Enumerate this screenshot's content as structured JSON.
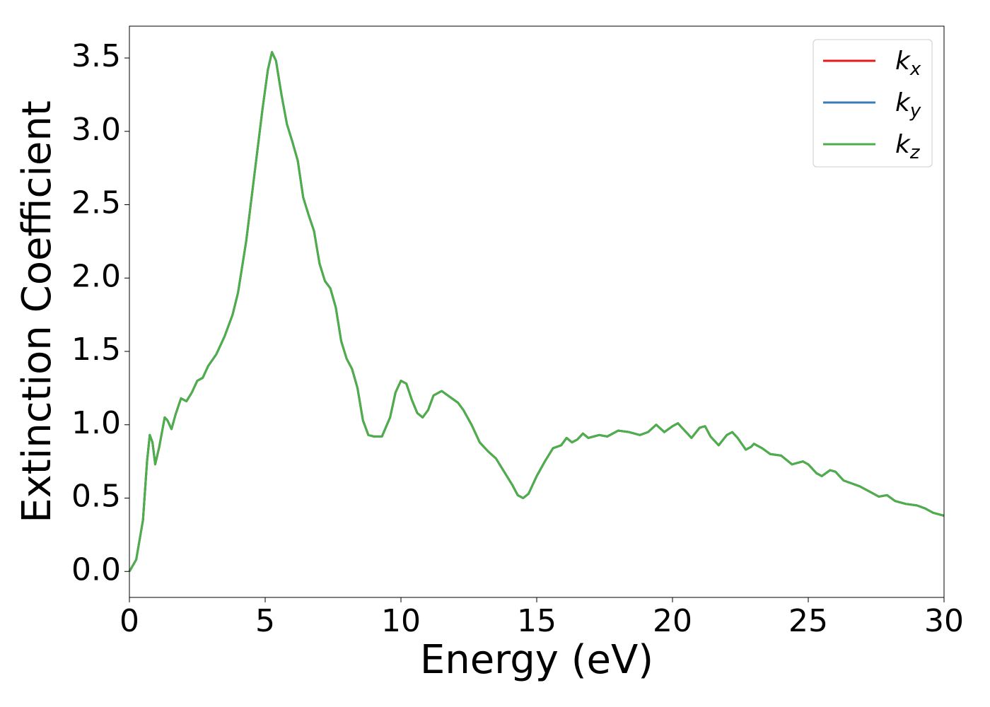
{
  "chart_data": {
    "type": "line",
    "xlabel": "Energy (eV)",
    "ylabel": "Extinction Coefficient",
    "xlim": [
      0,
      30
    ],
    "ylim": [
      -0.177,
      3.717
    ],
    "xticks": [
      0,
      5,
      10,
      15,
      20,
      25,
      30
    ],
    "yticks": [
      {
        "value": 0,
        "label": "0.0"
      },
      0.5,
      {
        "value": 1,
        "label": "1.0"
      },
      1.5,
      {
        "value": 2,
        "label": "2.0"
      },
      2.5,
      {
        "value": 3,
        "label": "3.0"
      },
      3.5
    ],
    "legend": "upper right",
    "grid": false,
    "x": [
      0,
      0.25,
      0.5,
      0.65,
      0.75,
      0.85,
      0.95,
      1.1,
      1.3,
      1.4,
      1.55,
      1.7,
      1.9,
      2.1,
      2.3,
      2.5,
      2.7,
      2.9,
      3.2,
      3.5,
      3.8,
      4.0,
      4.3,
      4.6,
      4.9,
      5.1,
      5.25,
      5.4,
      5.6,
      5.8,
      6.0,
      6.2,
      6.4,
      6.6,
      6.8,
      7.0,
      7.2,
      7.4,
      7.6,
      7.8,
      8.0,
      8.2,
      8.4,
      8.6,
      8.8,
      9.0,
      9.3,
      9.6,
      9.8,
      10.0,
      10.2,
      10.4,
      10.6,
      10.8,
      11.0,
      11.2,
      11.5,
      11.8,
      12.1,
      12.3,
      12.6,
      12.9,
      13.2,
      13.5,
      13.8,
      14.1,
      14.3,
      14.5,
      14.7,
      15.0,
      15.3,
      15.6,
      15.9,
      16.1,
      16.3,
      16.5,
      16.7,
      16.9,
      17.1,
      17.3,
      17.6,
      18.0,
      18.4,
      18.8,
      19.1,
      19.4,
      19.7,
      20.0,
      20.2,
      20.4,
      20.7,
      21.0,
      21.2,
      21.4,
      21.7,
      22.0,
      22.2,
      22.4,
      22.7,
      22.9,
      23.0,
      23.3,
      23.6,
      24.0,
      24.4,
      24.8,
      25.0,
      25.3,
      25.5,
      25.8,
      26.0,
      26.3,
      26.6,
      26.9,
      27.3,
      27.6,
      27.9,
      28.2,
      28.6,
      29.0,
      29.3,
      29.6,
      30.0
    ],
    "series": [
      {
        "name": "kx",
        "color": "#e41a1c",
        "values": [
          0,
          0.08,
          0.35,
          0.75,
          0.93,
          0.88,
          0.73,
          0.85,
          1.05,
          1.03,
          0.97,
          1.07,
          1.18,
          1.16,
          1.22,
          1.3,
          1.32,
          1.4,
          1.48,
          1.6,
          1.75,
          1.9,
          2.25,
          2.7,
          3.15,
          3.42,
          3.54,
          3.48,
          3.25,
          3.05,
          2.93,
          2.8,
          2.55,
          2.43,
          2.32,
          2.1,
          1.98,
          1.93,
          1.8,
          1.57,
          1.45,
          1.38,
          1.25,
          1.03,
          0.93,
          0.92,
          0.92,
          1.05,
          1.22,
          1.3,
          1.28,
          1.17,
          1.08,
          1.05,
          1.1,
          1.2,
          1.23,
          1.19,
          1.15,
          1.1,
          1.0,
          0.88,
          0.82,
          0.77,
          0.68,
          0.59,
          0.52,
          0.5,
          0.53,
          0.65,
          0.75,
          0.84,
          0.86,
          0.91,
          0.88,
          0.9,
          0.94,
          0.91,
          0.92,
          0.93,
          0.92,
          0.96,
          0.95,
          0.93,
          0.95,
          1.0,
          0.95,
          0.99,
          1.01,
          0.97,
          0.91,
          0.98,
          0.99,
          0.92,
          0.86,
          0.93,
          0.95,
          0.91,
          0.83,
          0.85,
          0.87,
          0.84,
          0.8,
          0.79,
          0.73,
          0.75,
          0.73,
          0.67,
          0.65,
          0.69,
          0.68,
          0.62,
          0.6,
          0.58,
          0.54,
          0.51,
          0.52,
          0.48,
          0.46,
          0.45,
          0.43,
          0.4,
          0.38
        ]
      },
      {
        "name": "ky",
        "color": "#377eb8",
        "values": [
          0,
          0.08,
          0.35,
          0.75,
          0.93,
          0.88,
          0.73,
          0.85,
          1.05,
          1.03,
          0.97,
          1.07,
          1.18,
          1.16,
          1.22,
          1.3,
          1.32,
          1.4,
          1.48,
          1.6,
          1.75,
          1.9,
          2.25,
          2.7,
          3.15,
          3.42,
          3.54,
          3.48,
          3.25,
          3.05,
          2.93,
          2.8,
          2.55,
          2.43,
          2.32,
          2.1,
          1.98,
          1.93,
          1.8,
          1.57,
          1.45,
          1.38,
          1.25,
          1.03,
          0.93,
          0.92,
          0.92,
          1.05,
          1.22,
          1.3,
          1.28,
          1.17,
          1.08,
          1.05,
          1.1,
          1.2,
          1.23,
          1.19,
          1.15,
          1.1,
          1.0,
          0.88,
          0.82,
          0.77,
          0.68,
          0.59,
          0.52,
          0.5,
          0.53,
          0.65,
          0.75,
          0.84,
          0.86,
          0.91,
          0.88,
          0.9,
          0.94,
          0.91,
          0.92,
          0.93,
          0.92,
          0.96,
          0.95,
          0.93,
          0.95,
          1.0,
          0.95,
          0.99,
          1.01,
          0.97,
          0.91,
          0.98,
          0.99,
          0.92,
          0.86,
          0.93,
          0.95,
          0.91,
          0.83,
          0.85,
          0.87,
          0.84,
          0.8,
          0.79,
          0.73,
          0.75,
          0.73,
          0.67,
          0.65,
          0.69,
          0.68,
          0.62,
          0.6,
          0.58,
          0.54,
          0.51,
          0.52,
          0.48,
          0.46,
          0.45,
          0.43,
          0.4,
          0.38
        ]
      },
      {
        "name": "kz",
        "color": "#4daf4a",
        "values": [
          0,
          0.08,
          0.35,
          0.75,
          0.93,
          0.88,
          0.73,
          0.85,
          1.05,
          1.03,
          0.97,
          1.07,
          1.18,
          1.16,
          1.22,
          1.3,
          1.32,
          1.4,
          1.48,
          1.6,
          1.75,
          1.9,
          2.25,
          2.7,
          3.15,
          3.42,
          3.54,
          3.48,
          3.25,
          3.05,
          2.93,
          2.8,
          2.55,
          2.43,
          2.32,
          2.1,
          1.98,
          1.93,
          1.8,
          1.57,
          1.45,
          1.38,
          1.25,
          1.03,
          0.93,
          0.92,
          0.92,
          1.05,
          1.22,
          1.3,
          1.28,
          1.17,
          1.08,
          1.05,
          1.1,
          1.2,
          1.23,
          1.19,
          1.15,
          1.1,
          1.0,
          0.88,
          0.82,
          0.77,
          0.68,
          0.59,
          0.52,
          0.5,
          0.53,
          0.65,
          0.75,
          0.84,
          0.86,
          0.91,
          0.88,
          0.9,
          0.94,
          0.91,
          0.92,
          0.93,
          0.92,
          0.96,
          0.95,
          0.93,
          0.95,
          1.0,
          0.95,
          0.99,
          1.01,
          0.97,
          0.91,
          0.98,
          0.99,
          0.92,
          0.86,
          0.93,
          0.95,
          0.91,
          0.83,
          0.85,
          0.87,
          0.84,
          0.8,
          0.79,
          0.73,
          0.75,
          0.73,
          0.67,
          0.65,
          0.69,
          0.68,
          0.62,
          0.6,
          0.58,
          0.54,
          0.51,
          0.52,
          0.48,
          0.46,
          0.45,
          0.43,
          0.4,
          0.38
        ]
      }
    ]
  }
}
